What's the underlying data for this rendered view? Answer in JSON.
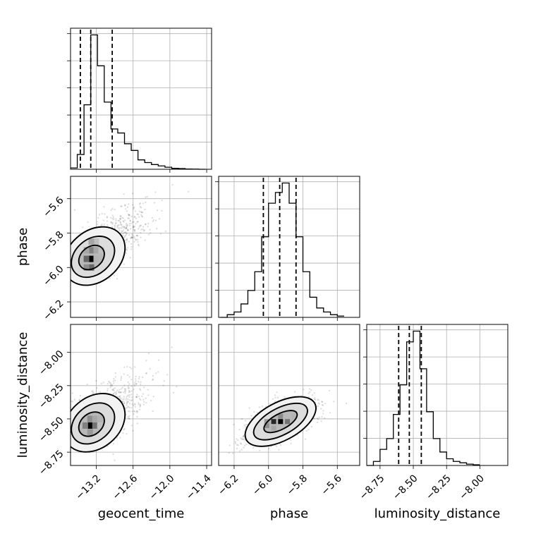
{
  "chart_data": {
    "type": "corner",
    "parameters": [
      "geocent_time",
      "phase",
      "luminosity_distance"
    ],
    "grid": true,
    "axes": {
      "geocent_time": {
        "range": [
          -13.62,
          -11.32
        ],
        "ticks": [
          -13.2,
          -12.6,
          -12.0,
          -11.4
        ],
        "tick_labels": [
          "−13.2",
          "−12.6",
          "−12.0",
          "−11.4"
        ]
      },
      "phase": {
        "range": [
          -6.29,
          -5.47
        ],
        "ticks": [
          -6.2,
          -6.0,
          -5.8,
          -5.6
        ],
        "tick_labels": [
          "−6.2",
          "−6.0",
          "−5.8",
          "−5.6"
        ]
      },
      "luminosity_distance": {
        "range": [
          -8.85,
          -7.79
        ],
        "ticks": [
          -8.75,
          -8.5,
          -8.25,
          -8.0
        ],
        "tick_labels": [
          "−8.75",
          "−8.50",
          "−8.25",
          "−8.00"
        ]
      }
    },
    "histograms": [
      {
        "parameter": "geocent_time",
        "bin_edges": [
          -13.62,
          -13.51,
          -13.4,
          -13.29,
          -13.18,
          -13.07,
          -12.96,
          -12.85,
          -12.74,
          -12.63,
          -12.52,
          -12.41,
          -12.3,
          -12.19,
          -12.08,
          -11.97,
          -11.86,
          -11.75,
          -11.64,
          -11.53,
          -11.42
        ],
        "counts": [
          0.01,
          0.11,
          0.48,
          1.0,
          0.77,
          0.5,
          0.3,
          0.27,
          0.19,
          0.14,
          0.07,
          0.05,
          0.035,
          0.025,
          0.015,
          0.007,
          0.005,
          0.002,
          0.001,
          0.0
        ],
        "quantiles": [
          -13.46,
          -13.29,
          -12.94
        ]
      },
      {
        "parameter": "phase",
        "bin_edges": [
          -6.28,
          -6.24,
          -6.2,
          -6.16,
          -6.12,
          -6.08,
          -6.04,
          -6.0,
          -5.96,
          -5.92,
          -5.88,
          -5.84,
          -5.8,
          -5.76,
          -5.72,
          -5.68,
          -5.64,
          -5.6,
          -5.56
        ],
        "counts": [
          0.0,
          0.02,
          0.04,
          0.1,
          0.2,
          0.34,
          0.6,
          0.85,
          0.93,
          1.0,
          0.85,
          0.6,
          0.34,
          0.15,
          0.07,
          0.04,
          0.02,
          0.01
        ],
        "quantiles": [
          -6.03,
          -5.935,
          -5.84
        ]
      },
      {
        "parameter": "luminosity_distance",
        "bin_edges": [
          -8.85,
          -8.8,
          -8.75,
          -8.7,
          -8.65,
          -8.6,
          -8.55,
          -8.5,
          -8.45,
          -8.4,
          -8.35,
          -8.3,
          -8.25,
          -8.2,
          -8.15,
          -8.1,
          -8.05,
          -8.0
        ],
        "counts": [
          0.0,
          0.03,
          0.12,
          0.2,
          0.38,
          0.6,
          0.92,
          1.0,
          0.72,
          0.4,
          0.2,
          0.1,
          0.05,
          0.03,
          0.02,
          0.01,
          0.005
        ],
        "quantiles": [
          -8.61,
          -8.53,
          -8.44
        ]
      }
    ],
    "scatter_2d": [
      {
        "x": "geocent_time",
        "y": "phase",
        "peak": [
          -13.3,
          -5.95
        ],
        "density_bins": [
          [
            -13.28,
            -5.95,
            1.0
          ],
          [
            -13.28,
            -6.0,
            0.6
          ],
          [
            -13.36,
            -5.95,
            0.6
          ],
          [
            -13.28,
            -5.9,
            0.5
          ],
          [
            -13.2,
            -5.9,
            0.35
          ],
          [
            -13.36,
            -6.0,
            0.45
          ],
          [
            -13.2,
            -5.95,
            0.3
          ],
          [
            -13.2,
            -5.85,
            0.25
          ],
          [
            -13.12,
            -5.9,
            0.25
          ],
          [
            -13.28,
            -5.85,
            0.35
          ],
          [
            -13.36,
            -5.9,
            0.35
          ]
        ]
      },
      {
        "x": "geocent_time",
        "y": "luminosity_distance",
        "peak": [
          -13.3,
          -8.55
        ],
        "density_bins": [
          [
            -13.3,
            -8.55,
            1.0
          ],
          [
            -13.22,
            -8.55,
            0.55
          ],
          [
            -13.38,
            -8.55,
            0.5
          ],
          [
            -13.3,
            -8.5,
            0.45
          ],
          [
            -13.3,
            -8.6,
            0.4
          ],
          [
            -13.22,
            -8.5,
            0.35
          ],
          [
            -13.14,
            -8.5,
            0.3
          ],
          [
            -13.14,
            -8.55,
            0.25
          ]
        ]
      },
      {
        "x": "phase",
        "y": "luminosity_distance",
        "peak": [
          -5.93,
          -8.52
        ],
        "density_bins": [
          [
            -5.93,
            -8.52,
            1.0
          ],
          [
            -5.97,
            -8.52,
            0.85
          ],
          [
            -5.89,
            -8.52,
            0.55
          ],
          [
            -6.01,
            -8.55,
            0.45
          ],
          [
            -5.93,
            -8.48,
            0.45
          ],
          [
            -5.85,
            -8.48,
            0.3
          ],
          [
            -6.01,
            -8.52,
            0.4
          ],
          [
            -5.97,
            -8.57,
            0.35
          ]
        ]
      }
    ]
  }
}
